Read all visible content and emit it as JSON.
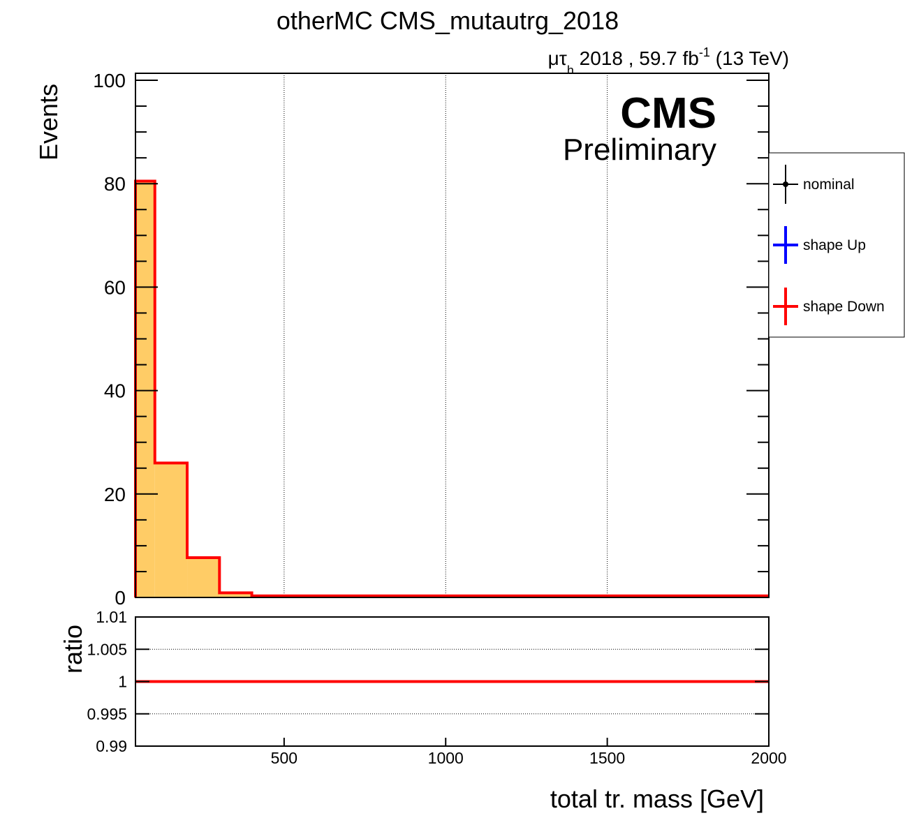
{
  "title": "otherMC CMS_mutautrg_2018",
  "lumi": {
    "channel_mu": "μτ",
    "channel_sub": "h",
    "text": " 2018 , 59.7 fb",
    "sup": "-1",
    "energy": " (13 TeV)"
  },
  "cms_label": "CMS",
  "preliminary_label": "Preliminary",
  "legend": {
    "entries": [
      {
        "label": "nominal",
        "color": "#000000"
      },
      {
        "label": "shape Up",
        "color": "#0000ff"
      },
      {
        "label": "shape Down",
        "color": "#ff0000"
      }
    ]
  },
  "chart_data": [
    {
      "type": "bar",
      "name": "main",
      "ylabel": "Events",
      "xlim": [
        40,
        2000
      ],
      "ylim": [
        0,
        100
      ],
      "yticks": [
        0,
        20,
        40,
        60,
        80,
        100
      ],
      "ytick_labels": [
        "0",
        "20",
        "40",
        "60",
        "80",
        "100"
      ],
      "xgrid": [
        500,
        1000,
        1500
      ],
      "fill_color": "#ffcc66",
      "line_color": "#ff0000",
      "bins": [
        {
          "x_low": 40,
          "x_high": 100,
          "value": 80.5
        },
        {
          "x_low": 100,
          "x_high": 200,
          "value": 26.0
        },
        {
          "x_low": 200,
          "x_high": 300,
          "value": 7.7
        },
        {
          "x_low": 300,
          "x_high": 400,
          "value": 0.9
        },
        {
          "x_low": 400,
          "x_high": 2000,
          "value": 0.3
        }
      ]
    },
    {
      "type": "line",
      "name": "ratio",
      "ylabel": "ratio",
      "xlabel": "total tr. mass [GeV]",
      "xlim": [
        40,
        2000
      ],
      "ylim": [
        0.99,
        1.01
      ],
      "yticks": [
        0.99,
        0.995,
        1,
        1.005,
        1.01
      ],
      "ytick_labels": [
        "0.99",
        "0.995",
        "1",
        "1.005",
        "1.01"
      ],
      "xticks": [
        500,
        1000,
        1500,
        2000
      ],
      "xtick_labels": [
        "500",
        "1000",
        "1500",
        "2000"
      ],
      "ygrid": [
        0.995,
        1.005
      ],
      "series": [
        {
          "x": [
            40,
            2000
          ],
          "y": [
            1,
            1
          ],
          "color": "#ff0000"
        }
      ]
    }
  ]
}
